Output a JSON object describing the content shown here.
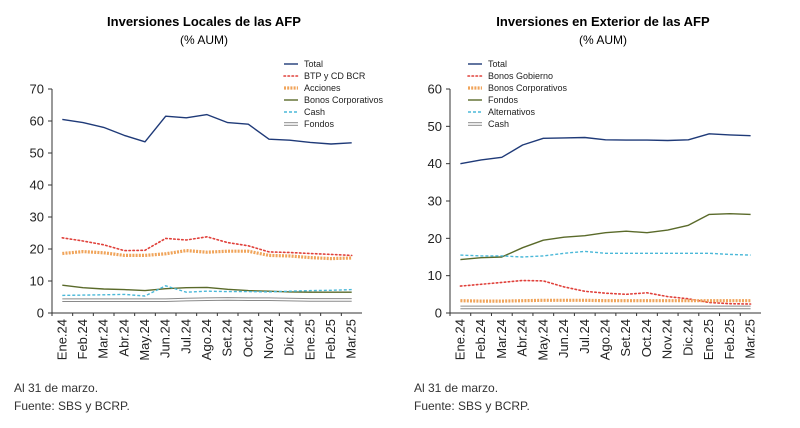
{
  "chart_data": [
    {
      "type": "line",
      "title": "Inversiones Locales de las AFP",
      "subtitle": "(% AUM)",
      "categories": [
        "Ene.24",
        "Feb.24",
        "Mar.24",
        "Abr.24",
        "May.24",
        "Jun.24",
        "Jul.24",
        "Ago.24",
        "Set.24",
        "Oct.24",
        "Nov.24",
        "Dic.24",
        "Ene.25",
        "Feb.25",
        "Mar.25"
      ],
      "ylim": [
        0,
        70
      ],
      "yticks": [
        0,
        10,
        20,
        30,
        40,
        50,
        60,
        70
      ],
      "legend_position": "top-right",
      "series": [
        {
          "name": "Total",
          "color": "#1f3a78",
          "style": "solid",
          "values": [
            60.5,
            59.5,
            58,
            55.5,
            53.5,
            61.5,
            61,
            62,
            59.5,
            59,
            54.3,
            54,
            53.3,
            52.8,
            53.2
          ]
        },
        {
          "name": "BTP y CD BCR",
          "color": "#e0403a",
          "style": "dotted",
          "values": [
            23.5,
            22.5,
            21.3,
            19.5,
            19.6,
            23.3,
            22.8,
            23.8,
            22,
            21,
            19.1,
            18.9,
            18.6,
            18.3,
            18
          ]
        },
        {
          "name": "Acciones",
          "color": "#f0a45a",
          "style": "thick",
          "values": [
            18.6,
            19.2,
            18.8,
            18,
            18,
            18.5,
            19.5,
            19,
            19.3,
            19.3,
            18,
            17.8,
            17.3,
            17,
            17.2
          ]
        },
        {
          "name": "Bonos Corporativos",
          "color": "#5a6a2a",
          "style": "solid",
          "values": [
            8.7,
            7.9,
            7.5,
            7.3,
            7,
            7.6,
            7.9,
            8,
            7.4,
            7,
            6.8,
            6.6,
            6.5,
            6.5,
            6.5
          ]
        },
        {
          "name": "Cash",
          "color": "#4ab8d8",
          "style": "dashed",
          "values": [
            5.5,
            5.6,
            5.7,
            5.8,
            5.3,
            8.5,
            6.5,
            6.8,
            6.7,
            6.7,
            6.6,
            6.8,
            7,
            7.1,
            7.3
          ]
        },
        {
          "name": "Fondos",
          "color": "#8a8a8a",
          "style": "double",
          "values": [
            4,
            4,
            4,
            4,
            4,
            4,
            4.2,
            4.3,
            4.4,
            4.3,
            4.3,
            4.2,
            4.1,
            4.1,
            4.1
          ]
        }
      ],
      "footnote": "Al 31 de marzo.",
      "source": "Fuente: SBS y BCRP."
    },
    {
      "type": "line",
      "title": "Inversiones en Exterior de las AFP",
      "subtitle": "(% AUM)",
      "categories": [
        "Ene.24",
        "Feb.24",
        "Mar.24",
        "Abr.24",
        "May.24",
        "Jun.24",
        "Jul.24",
        "Ago.24",
        "Set.24",
        "Oct.24",
        "Nov.24",
        "Dic.24",
        "Ene.25",
        "Feb.25",
        "Mar.25"
      ],
      "ylim": [
        0,
        60
      ],
      "yticks": [
        0,
        10,
        20,
        30,
        40,
        50,
        60
      ],
      "legend_position": "top-right",
      "series": [
        {
          "name": "Total",
          "color": "#1f3a78",
          "style": "solid",
          "values": [
            40,
            41,
            41.7,
            45,
            46.8,
            46.9,
            47,
            46.4,
            46.3,
            46.3,
            46.2,
            46.4,
            48,
            47.7,
            47.5
          ]
        },
        {
          "name": "Bonos Gobierno",
          "color": "#e0403a",
          "style": "dotted",
          "values": [
            7.2,
            7.7,
            8.2,
            8.7,
            8.6,
            7,
            5.8,
            5.3,
            5,
            5.4,
            4.4,
            3.8,
            2.8,
            2.5,
            2.4
          ]
        },
        {
          "name": "Bonos Corporativos",
          "color": "#f0a45a",
          "style": "thick",
          "values": [
            3.3,
            3.2,
            3.2,
            3.3,
            3.4,
            3.4,
            3.4,
            3.3,
            3.3,
            3.3,
            3.3,
            3.3,
            3.3,
            3.3,
            3.3
          ]
        },
        {
          "name": "Fondos",
          "color": "#5a6a2a",
          "style": "solid",
          "values": [
            14.3,
            14.8,
            15,
            17.5,
            19.5,
            20.3,
            20.7,
            21.5,
            21.9,
            21.5,
            22.2,
            23.5,
            26.4,
            26.6,
            26.4
          ]
        },
        {
          "name": "Alternativos",
          "color": "#4ab8d8",
          "style": "dashed",
          "values": [
            15.5,
            15.3,
            15.3,
            15,
            15.3,
            16,
            16.5,
            16,
            16,
            16,
            16,
            16,
            16,
            15.7,
            15.5
          ]
        },
        {
          "name": "Cash",
          "color": "#8a8a8a",
          "style": "double",
          "values": [
            1.5,
            1.5,
            1.5,
            1.5,
            1.5,
            1.5,
            1.5,
            1.5,
            1.5,
            1.5,
            1.5,
            1.5,
            1.5,
            1.5,
            1.5
          ]
        }
      ],
      "footnote": "Al 31 de marzo.",
      "source": "Fuente: SBS y BCRP."
    }
  ]
}
